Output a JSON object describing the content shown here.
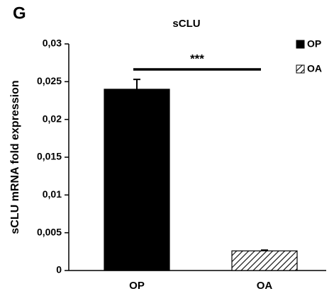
{
  "chart_data": {
    "type": "bar",
    "panel_label": "G",
    "title": "sCLU",
    "ylabel": "sCLU mRNA fold expression",
    "categories": [
      "OP",
      "OA"
    ],
    "values": [
      0.024,
      0.0026
    ],
    "errors": [
      0.0013,
      0.0001
    ],
    "colors": [
      "#000000",
      "#ffffff"
    ],
    "hatched": [
      false,
      true
    ],
    "ylim": [
      0,
      0.03
    ],
    "yticks": [
      0,
      {
        "value": 0.005,
        "label": "0,005"
      },
      {
        "value": 0.01,
        "label": "0,01"
      },
      {
        "value": 0.015,
        "label": "0,015"
      },
      {
        "value": 0.02,
        "label": "0,02"
      },
      {
        "value": 0.025,
        "label": "0,025"
      },
      {
        "value": 0.03,
        "label": "0,03"
      }
    ],
    "grid": false,
    "legend": "right",
    "annotation": {
      "text": "***",
      "between": [
        0,
        1
      ]
    }
  }
}
